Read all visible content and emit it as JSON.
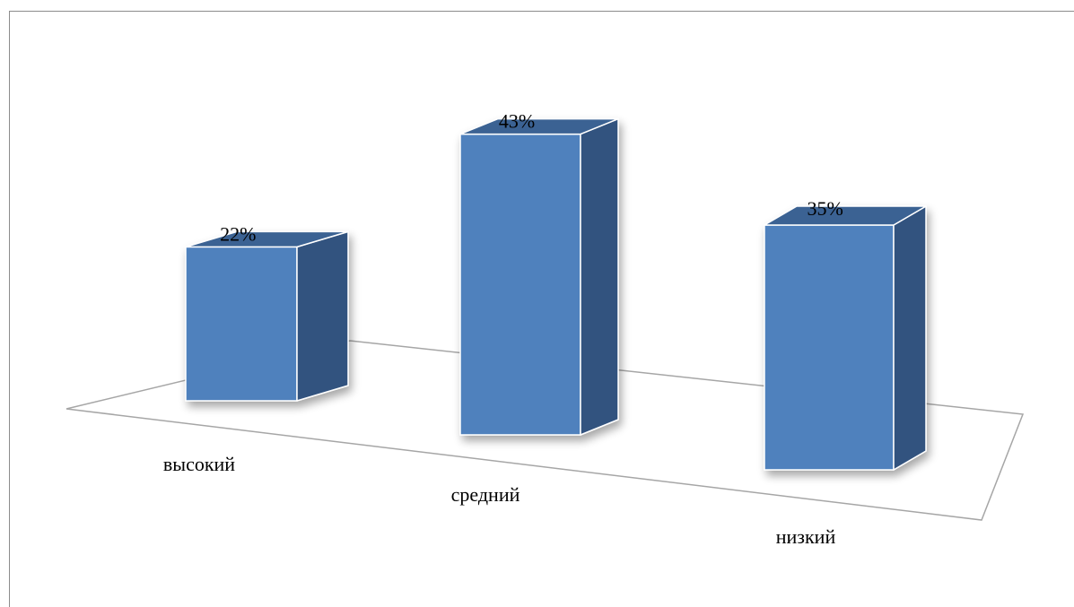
{
  "chart_data": {
    "type": "bar",
    "categories": [
      "высокий",
      "средний",
      "низкий"
    ],
    "values": [
      22,
      43,
      35
    ],
    "value_labels": [
      "22%",
      "43%",
      "35%"
    ],
    "unit": "%",
    "legend": "none",
    "grid": false,
    "colors": {
      "front": "#4f81bd",
      "side": "#31527f",
      "top": "#3b6293",
      "edge": "#ffffff",
      "floor": "#a6a6a6"
    }
  }
}
